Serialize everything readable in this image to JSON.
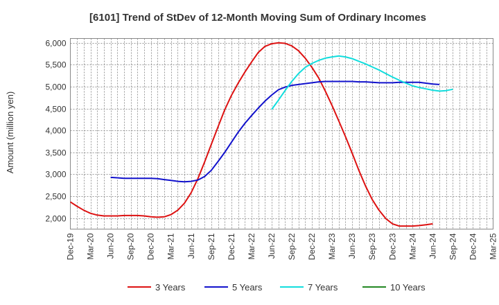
{
  "chart_data": {
    "type": "line",
    "title": "[6101]  Trend of StDev of 12-Month Moving Sum of Ordinary Incomes",
    "xlabel": "",
    "ylabel": "Amount (million yen)",
    "ylim": [
      1750,
      6100
    ],
    "yticks": [
      2000,
      2500,
      3000,
      3500,
      4000,
      4500,
      5000,
      5500,
      6000
    ],
    "ytick_labels": [
      "2,000",
      "2,500",
      "3,000",
      "3,500",
      "4,000",
      "4,500",
      "5,000",
      "5,500",
      "6,000"
    ],
    "x_categories": [
      "Dec-19",
      "Mar-20",
      "Jun-20",
      "Sep-20",
      "Dec-20",
      "Mar-21",
      "Jun-21",
      "Sep-21",
      "Dec-21",
      "Mar-22",
      "Jun-22",
      "Sep-22",
      "Dec-22",
      "Mar-23",
      "Jun-23",
      "Sep-23",
      "Dec-23",
      "Mar-24",
      "Jun-24",
      "Sep-24",
      "Dec-24",
      "Mar-25"
    ],
    "grid": true,
    "legend_position": "bottom",
    "series": [
      {
        "name": "3 Years",
        "color": "#dd1111",
        "start_index": 0,
        "values": [
          2370,
          2270,
          2180,
          2110,
          2070,
          2050,
          2050,
          2050,
          2060,
          2060,
          2060,
          2050,
          2030,
          2020,
          2030,
          2080,
          2180,
          2340,
          2580,
          2900,
          3280,
          3680,
          4080,
          4470,
          4800,
          5080,
          5330,
          5560,
          5780,
          5920,
          5980,
          6000,
          5990,
          5930,
          5820,
          5650,
          5440,
          5200,
          4900,
          4570,
          4220,
          3860,
          3480,
          3090,
          2730,
          2420,
          2180,
          1990,
          1870,
          1820,
          1820,
          1820,
          1830,
          1850,
          1870
        ]
      },
      {
        "name": "5 Years",
        "color": "#1111cc",
        "start_index": 6,
        "values": [
          2930,
          2920,
          2910,
          2910,
          2910,
          2910,
          2910,
          2900,
          2880,
          2860,
          2840,
          2830,
          2840,
          2870,
          2950,
          3090,
          3290,
          3500,
          3730,
          3960,
          4160,
          4340,
          4510,
          4670,
          4810,
          4930,
          4990,
          5030,
          5050,
          5070,
          5090,
          5110,
          5120,
          5120,
          5120,
          5120,
          5120,
          5110,
          5110,
          5100,
          5090,
          5090,
          5090,
          5100,
          5100,
          5100,
          5100,
          5080,
          5060,
          5050
        ]
      },
      {
        "name": "7 Years",
        "color": "#11dddd",
        "start_index": 30,
        "values": [
          4480,
          4690,
          4910,
          5120,
          5300,
          5440,
          5530,
          5600,
          5650,
          5680,
          5700,
          5680,
          5640,
          5580,
          5520,
          5450,
          5380,
          5300,
          5220,
          5150,
          5080,
          5020,
          4980,
          4950,
          4920,
          4900,
          4910,
          4940
        ]
      },
      {
        "name": "10 Years",
        "color": "#228822",
        "start_index": 0,
        "values": []
      }
    ]
  }
}
